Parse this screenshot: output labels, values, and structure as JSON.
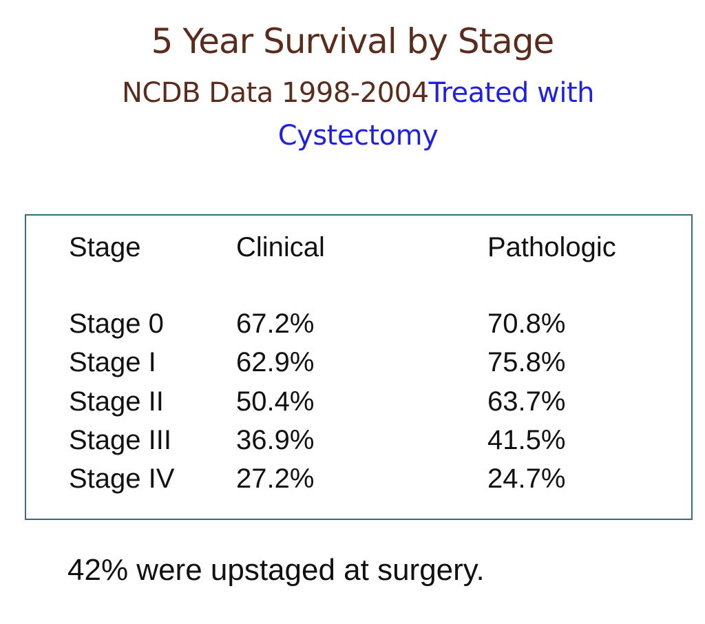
{
  "slide": {
    "title": "5 Year Survival by Stage",
    "subtitle_dark": "NCDB Data 1998-2004",
    "subtitle_blue": "Treated with Cystectomy",
    "table": {
      "headers": [
        "Stage",
        "Clinical",
        "Pathologic"
      ],
      "rows": [
        [
          "Stage 0",
          "67.2%",
          "70.8%"
        ],
        [
          "Stage I",
          "62.9%",
          "75.8%"
        ],
        [
          "Stage II",
          "50.4%",
          "63.7%"
        ],
        [
          "Stage III",
          "36.9%",
          "41.5%"
        ],
        [
          "Stage IV",
          "27.2%",
          "24.7%"
        ]
      ]
    },
    "footnote": "42% were upstaged at surgery."
  },
  "colors": {
    "title": "#5b2b1c",
    "accent_blue": "#1f1fe6",
    "table_border": "#3d6a7a",
    "text": "#111111"
  }
}
